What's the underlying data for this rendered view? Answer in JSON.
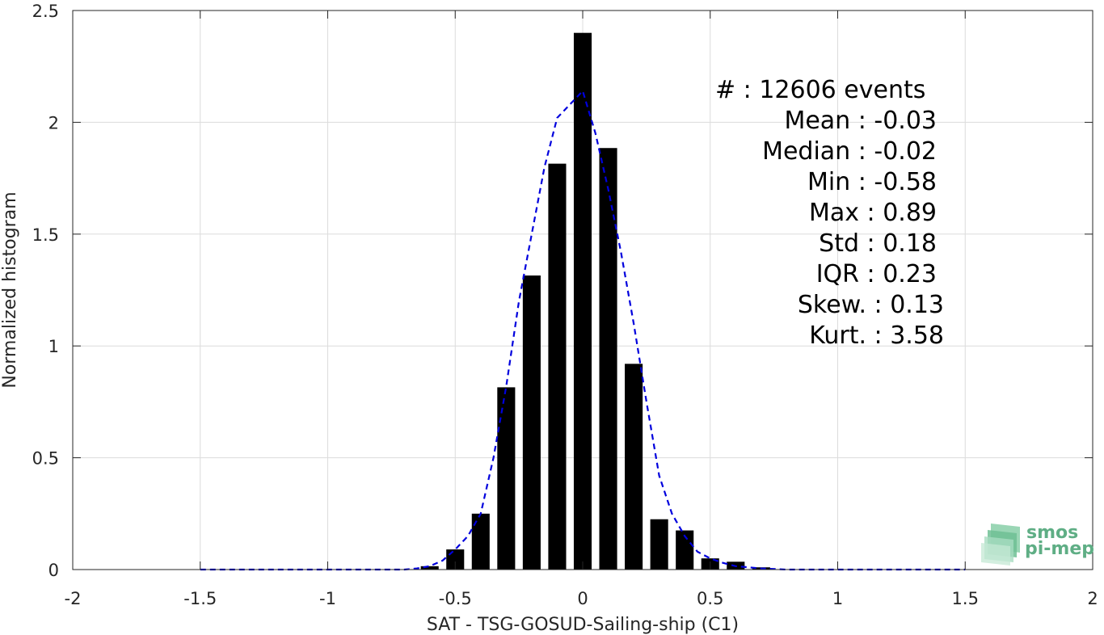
{
  "chart_data": {
    "type": "bar",
    "xlabel": "SAT - TSG-GOSUD-Sailing-ship (C1)",
    "ylabel": "Normalized histogram",
    "xlim": [
      -2,
      2
    ],
    "ylim": [
      0,
      2.5
    ],
    "grid": true,
    "x_ticks": [
      "-2",
      "-1.5",
      "-1",
      "-0.5",
      "0",
      "0.5",
      "1",
      "1.5",
      "2"
    ],
    "y_ticks": [
      "0",
      "0.5",
      "1",
      "1.5",
      "2",
      "2.5"
    ],
    "bar_color": "#000000",
    "bars": {
      "x": [
        -0.6,
        -0.5,
        -0.4,
        -0.3,
        -0.2,
        -0.1,
        0.0,
        0.1,
        0.2,
        0.3,
        0.4,
        0.5,
        0.6,
        0.7
      ],
      "values": [
        0.015,
        0.09,
        0.25,
        0.815,
        1.315,
        1.815,
        2.4,
        1.885,
        0.92,
        0.225,
        0.175,
        0.05,
        0.035,
        0.01
      ]
    },
    "fit_curve": {
      "style": "dashed",
      "color": "#0000dd",
      "x": [
        -1.5,
        -1.0,
        -0.7,
        -0.65,
        -0.6,
        -0.55,
        -0.5,
        -0.45,
        -0.4,
        -0.35,
        -0.3,
        -0.25,
        -0.2,
        -0.15,
        -0.1,
        -0.05,
        0.0,
        0.05,
        0.1,
        0.15,
        0.2,
        0.25,
        0.3,
        0.35,
        0.4,
        0.45,
        0.5,
        0.55,
        0.6,
        0.7,
        0.8,
        1.0,
        1.5
      ],
      "y": [
        0.0,
        0.0,
        0.0,
        0.005,
        0.015,
        0.04,
        0.09,
        0.15,
        0.25,
        0.5,
        0.82,
        1.2,
        1.5,
        1.8,
        2.02,
        2.08,
        2.14,
        1.95,
        1.7,
        1.42,
        1.1,
        0.75,
        0.42,
        0.25,
        0.15,
        0.08,
        0.05,
        0.03,
        0.015,
        0.005,
        0.0,
        0.0,
        0.0
      ]
    },
    "annotations": [
      "#  : 12606 events",
      "Mean : -0.03",
      "Median : -0.02",
      "Min : -0.58",
      "Max : 0.89",
      "Std : 0.18",
      "IQR : 0.23",
      "Skew. : 0.13",
      "Kurt. : 3.58"
    ]
  },
  "logo": {
    "line1": "smos",
    "line2": "pi-mep",
    "color": "#5fae85"
  }
}
